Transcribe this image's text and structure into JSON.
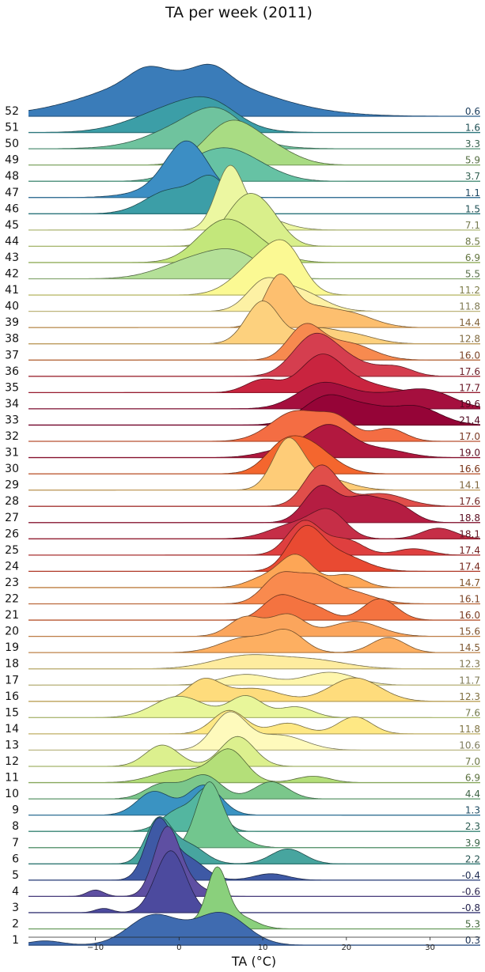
{
  "chart_data": {
    "type": "area",
    "subtype": "ridgeline",
    "title": "TA per week (2011)",
    "xlabel": "TA (°C)",
    "xlim": [
      -18,
      36
    ],
    "xticks": [
      -10,
      0,
      10,
      20,
      30
    ],
    "xtick_labels": [
      "−10",
      "0",
      "10",
      "20",
      "30"
    ],
    "series": [
      {
        "week": "52",
        "mean": "0.6",
        "color": "#3a7cb9",
        "peaks": [
          [
            0,
            9,
            1.0
          ],
          [
            -4,
            2,
            0.25
          ],
          [
            4,
            2,
            0.3
          ]
        ]
      },
      {
        "week": "51",
        "mean": "1.6",
        "color": "#3c9ea7",
        "peaks": [
          [
            0,
            5,
            0.6
          ],
          [
            4,
            3,
            0.35
          ]
        ]
      },
      {
        "week": "50",
        "mean": "3.3",
        "color": "#6fc39e",
        "peaks": [
          [
            1,
            4,
            0.35
          ],
          [
            5,
            3,
            0.55
          ],
          [
            2,
            6,
            0.2
          ]
        ]
      },
      {
        "week": "49",
        "mean": "5.9",
        "color": "#a9dc83",
        "peaks": [
          [
            6,
            3,
            0.95
          ],
          [
            11,
            3,
            0.35
          ]
        ]
      },
      {
        "week": "48",
        "mean": "3.7",
        "color": "#66c2a4",
        "peaks": [
          [
            2,
            3,
            0.35
          ],
          [
            6,
            3,
            0.55
          ],
          [
            10,
            3,
            0.2
          ]
        ]
      },
      {
        "week": "47",
        "mean": "1.1",
        "color": "#3c8ec4",
        "peaks": [
          [
            1,
            2.5,
            1.15
          ],
          [
            -1,
            4,
            0.2
          ]
        ]
      },
      {
        "week": "46",
        "mean": "1.5",
        "color": "#3c9ea7",
        "peaks": [
          [
            -1,
            3,
            0.55
          ],
          [
            4,
            2,
            0.75
          ]
        ]
      },
      {
        "week": "45",
        "mean": "7.1",
        "color": "#ecf7a1",
        "peaks": [
          [
            6,
            1.6,
            1.3
          ],
          [
            9,
            3,
            0.35
          ]
        ]
      },
      {
        "week": "44",
        "mean": "8.5",
        "color": "#d9ef8b",
        "peaks": [
          [
            8,
            2.5,
            1.1
          ],
          [
            11,
            2,
            0.35
          ]
        ]
      },
      {
        "week": "43",
        "mean": "6.9",
        "color": "#c3e77b",
        "peaks": [
          [
            5,
            3,
            0.85
          ],
          [
            9,
            3,
            0.35
          ]
        ]
      },
      {
        "week": "42",
        "mean": "5.5",
        "color": "#b4e098",
        "peaks": [
          [
            2,
            4,
            0.45
          ],
          [
            7,
            3,
            0.45
          ]
        ]
      },
      {
        "week": "41",
        "mean": "11.2",
        "color": "#fbf993",
        "peaks": [
          [
            10,
            3,
            0.85
          ],
          [
            13,
            2,
            0.7
          ]
        ]
      },
      {
        "week": "40",
        "mean": "11.8",
        "color": "#fdf1a4",
        "peaks": [
          [
            10,
            2,
            0.55
          ],
          [
            14,
            3,
            0.5
          ]
        ]
      },
      {
        "week": "39",
        "mean": "14.4",
        "color": "#fdbf6f",
        "peaks": [
          [
            12,
            1.8,
            1.2
          ],
          [
            20,
            3,
            0.35
          ],
          [
            16,
            2,
            0.3
          ]
        ]
      },
      {
        "week": "38",
        "mean": "12.8",
        "color": "#fdd17e",
        "peaks": [
          [
            10,
            2,
            1.0
          ],
          [
            16,
            2,
            0.25
          ],
          [
            20,
            3,
            0.25
          ]
        ]
      },
      {
        "week": "37",
        "mean": "16.0",
        "color": "#f78a4f",
        "peaks": [
          [
            15,
            2,
            0.75
          ],
          [
            20,
            3,
            0.4
          ]
        ]
      },
      {
        "week": "36",
        "mean": "17.6",
        "color": "#d53e4f",
        "peaks": [
          [
            16,
            2.5,
            0.85
          ],
          [
            20,
            3,
            0.35
          ],
          [
            26,
            2,
            0.2
          ]
        ]
      },
      {
        "week": "35",
        "mean": "17.7",
        "color": "#c9243f",
        "peaks": [
          [
            17,
            2.5,
            0.85
          ],
          [
            10,
            2,
            0.3
          ],
          [
            22,
            3,
            0.2
          ]
        ]
      },
      {
        "week": "34",
        "mean": "19.6",
        "color": "#a50f3e",
        "peaks": [
          [
            17,
            3,
            0.55
          ],
          [
            24,
            4,
            0.3
          ],
          [
            30,
            3,
            0.35
          ]
        ]
      },
      {
        "week": "33",
        "mean": "21.4",
        "color": "#950437",
        "peaks": [
          [
            18,
            3,
            0.7
          ],
          [
            28,
            3,
            0.45
          ],
          [
            23,
            2,
            0.2
          ]
        ]
      },
      {
        "week": "32",
        "mean": "17.0",
        "color": "#f46d43",
        "peaks": [
          [
            14,
            3,
            0.7
          ],
          [
            19,
            2,
            0.45
          ],
          [
            25,
            2,
            0.3
          ]
        ]
      },
      {
        "week": "31",
        "mean": "19.0",
        "color": "#b2183f",
        "peaks": [
          [
            18,
            2.5,
            0.7
          ],
          [
            13,
            3,
            0.2
          ],
          [
            24,
            3,
            0.2
          ]
        ]
      },
      {
        "week": "30",
        "mean": "16.6",
        "color": "#f4662e",
        "peaks": [
          [
            15,
            3,
            0.75
          ],
          [
            12,
            2,
            0.3
          ]
        ]
      },
      {
        "week": "29",
        "mean": "14.1",
        "color": "#fecc78",
        "peaks": [
          [
            13,
            1.8,
            1.1
          ],
          [
            17,
            3,
            0.3
          ]
        ]
      },
      {
        "week": "28",
        "mean": "17.6",
        "color": "#e04e4a",
        "peaks": [
          [
            17,
            2,
            0.95
          ],
          [
            24,
            3,
            0.3
          ]
        ]
      },
      {
        "week": "27",
        "mean": "18.8",
        "color": "#b51d42",
        "peaks": [
          [
            17,
            2,
            0.85
          ],
          [
            22,
            2,
            0.55
          ],
          [
            26,
            2,
            0.4
          ]
        ]
      },
      {
        "week": "26",
        "mean": "18.1",
        "color": "#c62e47",
        "peaks": [
          [
            14,
            3,
            0.35
          ],
          [
            18,
            2,
            0.55
          ],
          [
            31,
            2,
            0.25
          ]
        ]
      },
      {
        "week": "25",
        "mean": "17.4",
        "color": "#df3f3f",
        "peaks": [
          [
            15,
            2,
            0.8
          ],
          [
            20,
            2,
            0.35
          ],
          [
            28,
            2,
            0.15
          ]
        ]
      },
      {
        "week": "24",
        "mean": "17.4",
        "color": "#e94a32",
        "peaks": [
          [
            15,
            2,
            0.9
          ],
          [
            19,
            3,
            0.4
          ]
        ]
      },
      {
        "week": "23",
        "mean": "14.7",
        "color": "#fda656",
        "peaks": [
          [
            14,
            2,
            0.75
          ],
          [
            20,
            2,
            0.3
          ],
          [
            10,
            2,
            0.2
          ]
        ]
      },
      {
        "week": "22",
        "mean": "16.1",
        "color": "#f98a4e",
        "peaks": [
          [
            12,
            2,
            0.65
          ],
          [
            16,
            2,
            0.5
          ],
          [
            20,
            3,
            0.3
          ]
        ]
      },
      {
        "week": "21",
        "mean": "16.0",
        "color": "#f47340",
        "peaks": [
          [
            12,
            2,
            0.55
          ],
          [
            16,
            2,
            0.3
          ],
          [
            24,
            2,
            0.5
          ]
        ]
      },
      {
        "week": "20",
        "mean": "15.6",
        "color": "#fba55c",
        "peaks": [
          [
            8,
            2,
            0.45
          ],
          [
            13,
            2,
            0.5
          ],
          [
            21,
            3,
            0.35
          ]
        ]
      },
      {
        "week": "19",
        "mean": "14.5",
        "color": "#fdaf61",
        "peaks": [
          [
            8,
            3,
            0.35
          ],
          [
            13,
            2,
            0.45
          ],
          [
            25,
            2,
            0.35
          ]
        ]
      },
      {
        "week": "18",
        "mean": "12.3",
        "color": "#feec9f",
        "peaks": [
          [
            8,
            4,
            0.3
          ],
          [
            16,
            4,
            0.2
          ]
        ]
      },
      {
        "week": "17",
        "mean": "11.7",
        "color": "#fef6ad",
        "peaks": [
          [
            8,
            3,
            0.25
          ],
          [
            18,
            3,
            0.3
          ]
        ]
      },
      {
        "week": "16",
        "mean": "12.3",
        "color": "#fedc7c",
        "peaks": [
          [
            3,
            2,
            0.5
          ],
          [
            9,
            3,
            0.3
          ],
          [
            21,
            3,
            0.55
          ]
        ]
      },
      {
        "week": "15",
        "mean": "7.6",
        "color": "#e8f69a",
        "peaks": [
          [
            0,
            3,
            0.5
          ],
          [
            8,
            2,
            0.5
          ],
          [
            14,
            2,
            0.25
          ]
        ]
      },
      {
        "week": "14",
        "mean": "11.8",
        "color": "#fee884",
        "peaks": [
          [
            6,
            2,
            0.55
          ],
          [
            13,
            2,
            0.25
          ],
          [
            21,
            2,
            0.4
          ]
        ]
      },
      {
        "week": "13",
        "mean": "10.6",
        "color": "#fefabc",
        "peaks": [
          [
            6,
            2,
            0.85
          ],
          [
            12,
            3,
            0.35
          ]
        ]
      },
      {
        "week": "12",
        "mean": "7.0",
        "color": "#dcf08e",
        "peaks": [
          [
            -2,
            2,
            0.5
          ],
          [
            7,
            2,
            0.7
          ]
        ]
      },
      {
        "week": "11",
        "mean": "6.9",
        "color": "#b4df79",
        "peaks": [
          [
            0,
            3,
            0.3
          ],
          [
            6,
            2,
            0.75
          ],
          [
            16,
            2,
            0.15
          ]
        ]
      },
      {
        "week": "10",
        "mean": "4.4",
        "color": "#7bc78b",
        "peaks": [
          [
            -2,
            2,
            0.35
          ],
          [
            3,
            2,
            0.55
          ],
          [
            11,
            2,
            0.4
          ]
        ]
      },
      {
        "week": "9",
        "mean": "1.3",
        "color": "#3a93c2",
        "peaks": [
          [
            -3,
            2,
            0.55
          ],
          [
            3,
            2,
            0.7
          ]
        ]
      },
      {
        "week": "8",
        "mean": "2.3",
        "color": "#53b6a0",
        "peaks": [
          [
            0,
            2,
            0.5
          ],
          [
            3.5,
            1.5,
            0.9
          ]
        ]
      },
      {
        "week": "7",
        "mean": "3.9",
        "color": "#72c68e",
        "peaks": [
          [
            3.5,
            1.5,
            1.4
          ],
          [
            6,
            2,
            0.3
          ]
        ]
      },
      {
        "week": "6",
        "mean": "2.2",
        "color": "#47a59f",
        "peaks": [
          [
            -2.5,
            1.5,
            1.0
          ],
          [
            1,
            2,
            0.45
          ],
          [
            13,
            2,
            0.35
          ]
        ]
      },
      {
        "week": "5",
        "mean": "-0.4",
        "color": "#3e59a5",
        "peaks": [
          [
            -2.5,
            1.5,
            1.35
          ],
          [
            1,
            2,
            0.5
          ],
          [
            11,
            2,
            0.15
          ]
        ]
      },
      {
        "week": "4",
        "mean": "-0.6",
        "color": "#5e4fa2",
        "peaks": [
          [
            -1.5,
            1.5,
            1.5
          ],
          [
            -10,
            1,
            0.15
          ],
          [
            1,
            2,
            0.3
          ]
        ]
      },
      {
        "week": "3",
        "mean": "-0.8",
        "color": "#4c4a9e",
        "peaks": [
          [
            -1,
            1.8,
            1.45
          ],
          [
            -9,
            1,
            0.1
          ]
        ]
      },
      {
        "week": "2",
        "mean": "5.3",
        "color": "#8ad07c",
        "peaks": [
          [
            4.5,
            1.2,
            1.3
          ],
          [
            0,
            2,
            0.2
          ],
          [
            7,
            2,
            0.3
          ]
        ]
      },
      {
        "week": "1",
        "mean": "0.3",
        "color": "#3f6bb0",
        "peaks": [
          [
            -3,
            3,
            0.7
          ],
          [
            5,
            3,
            0.75
          ],
          [
            -16,
            2,
            0.1
          ]
        ]
      }
    ]
  }
}
